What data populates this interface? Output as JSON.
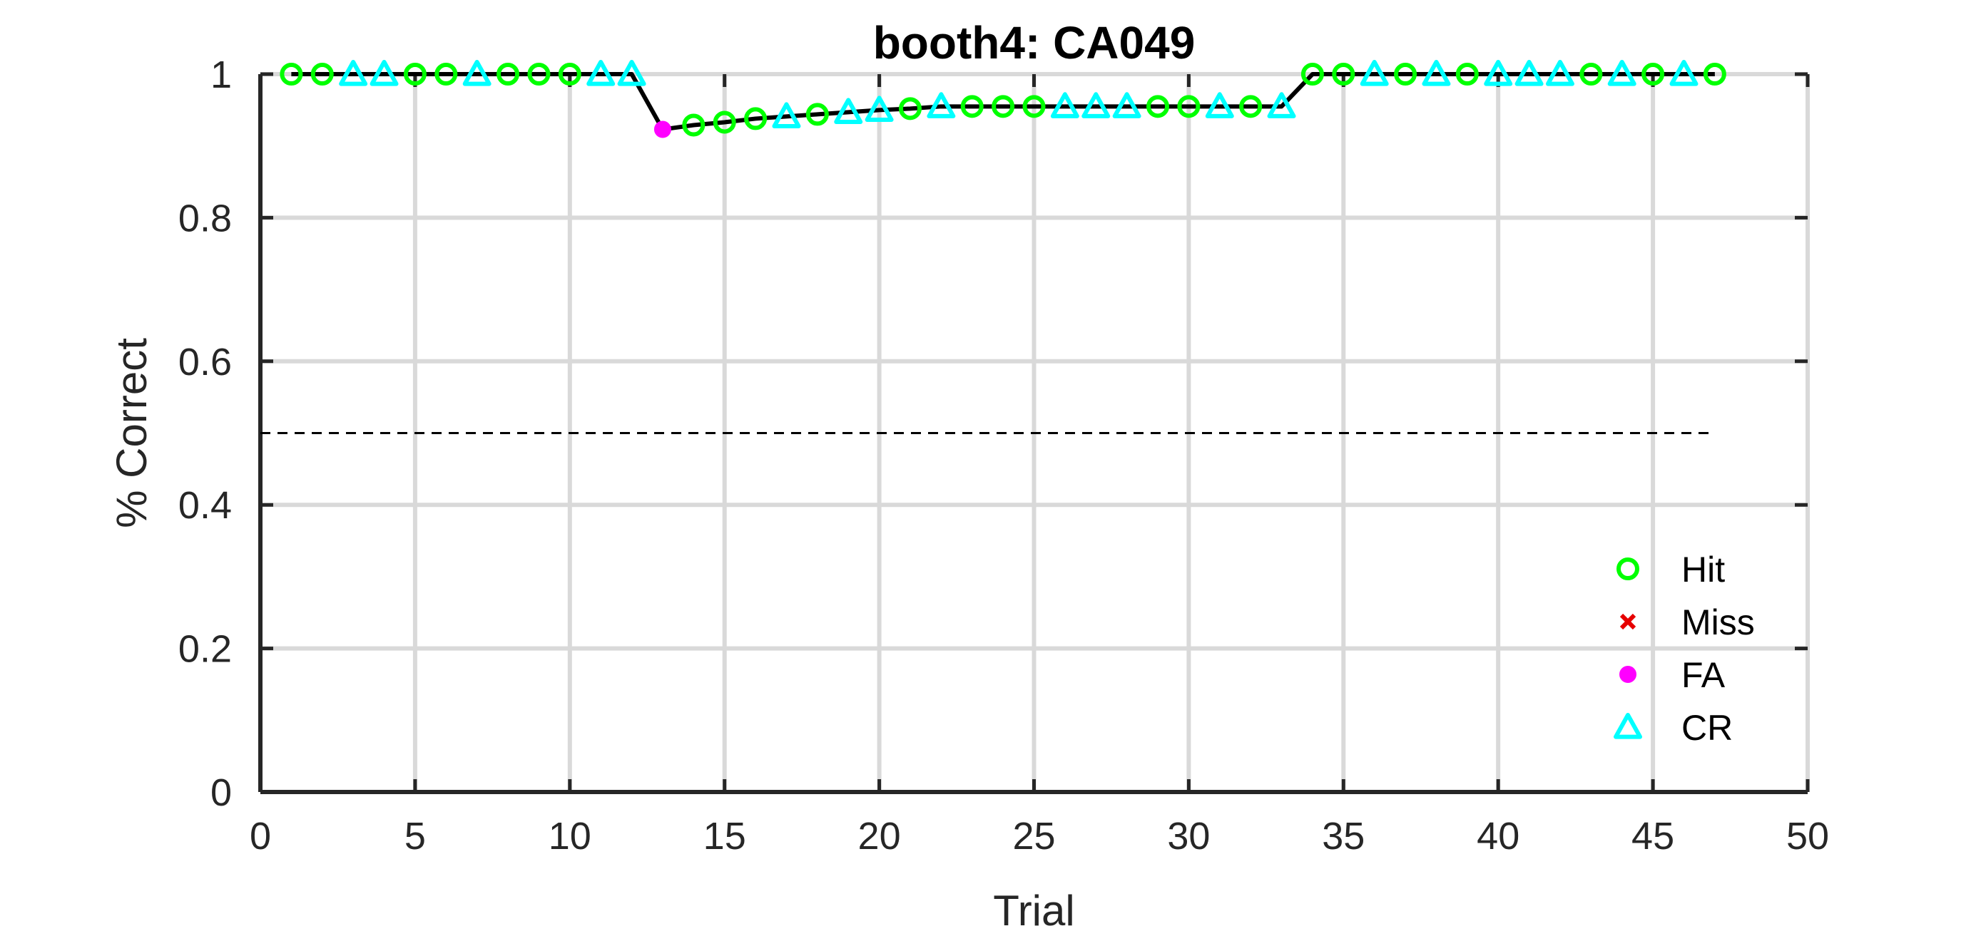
{
  "chart_data": {
    "type": "scatter",
    "title": "booth4: CA049",
    "xlabel": "Trial",
    "ylabel": "% Correct",
    "xlim": [
      0,
      50
    ],
    "ylim": [
      0,
      1
    ],
    "xticks": [
      0,
      5,
      10,
      15,
      20,
      25,
      30,
      35,
      40,
      45,
      50
    ],
    "yticks": [
      0,
      0.2,
      0.4,
      0.6,
      0.8,
      1
    ],
    "grid": true,
    "chance_line": {
      "y": 0.5,
      "x": [
        0,
        47
      ],
      "style": "dashed"
    },
    "line_series": {
      "x": [
        1,
        2,
        3,
        4,
        5,
        6,
        7,
        8,
        9,
        10,
        11,
        12,
        13,
        14,
        15,
        16,
        17,
        18,
        19,
        20,
        21,
        22,
        23,
        24,
        25,
        26,
        27,
        28,
        29,
        30,
        31,
        32,
        33,
        34,
        35,
        36,
        37,
        38,
        39,
        40,
        41,
        42,
        43,
        44,
        45,
        46,
        47
      ],
      "y": [
        1,
        1,
        1,
        1,
        1,
        1,
        1,
        1,
        1,
        1,
        1,
        1,
        0.923,
        0.929,
        0.933,
        0.938,
        0.941,
        0.944,
        0.947,
        0.95,
        0.952,
        0.955,
        0.955,
        0.955,
        0.955,
        0.955,
        0.955,
        0.955,
        0.955,
        0.955,
        0.955,
        0.955,
        0.955,
        1,
        1,
        1,
        1,
        1,
        1,
        1,
        1,
        1,
        1,
        1,
        1,
        1,
        1
      ]
    },
    "series": [
      {
        "name": "Hit",
        "color": "#00ff00",
        "marker": "circle",
        "x": [
          1,
          2,
          5,
          6,
          8,
          9,
          10,
          14,
          15,
          16,
          18,
          21,
          23,
          24,
          25,
          29,
          30,
          32,
          34,
          35,
          37,
          39,
          43,
          45,
          47
        ],
        "y": [
          1,
          1,
          1,
          1,
          1,
          1,
          1,
          0.929,
          0.933,
          0.938,
          0.944,
          0.952,
          0.955,
          0.955,
          0.955,
          0.955,
          0.955,
          0.955,
          1,
          1,
          1,
          1,
          1,
          1,
          1
        ]
      },
      {
        "name": "Miss",
        "color": "#e60000",
        "marker": "x",
        "x": [],
        "y": []
      },
      {
        "name": "FA",
        "color": "#ff00ff",
        "marker": "dot",
        "x": [
          13
        ],
        "y": [
          0.923
        ]
      },
      {
        "name": "CR",
        "color": "#00ffff",
        "marker": "triangle",
        "x": [
          3,
          4,
          7,
          11,
          12,
          17,
          19,
          20,
          22,
          26,
          27,
          28,
          31,
          33,
          36,
          38,
          40,
          41,
          42,
          44,
          46
        ],
        "y": [
          1,
          1,
          1,
          1,
          1,
          0.941,
          0.947,
          0.95,
          0.955,
          0.955,
          0.955,
          0.955,
          0.955,
          0.955,
          1,
          1,
          1,
          1,
          1,
          1,
          1
        ]
      }
    ],
    "legend": {
      "position": "bottom-right",
      "entries": [
        "Hit",
        "Miss",
        "FA",
        "CR"
      ]
    }
  }
}
